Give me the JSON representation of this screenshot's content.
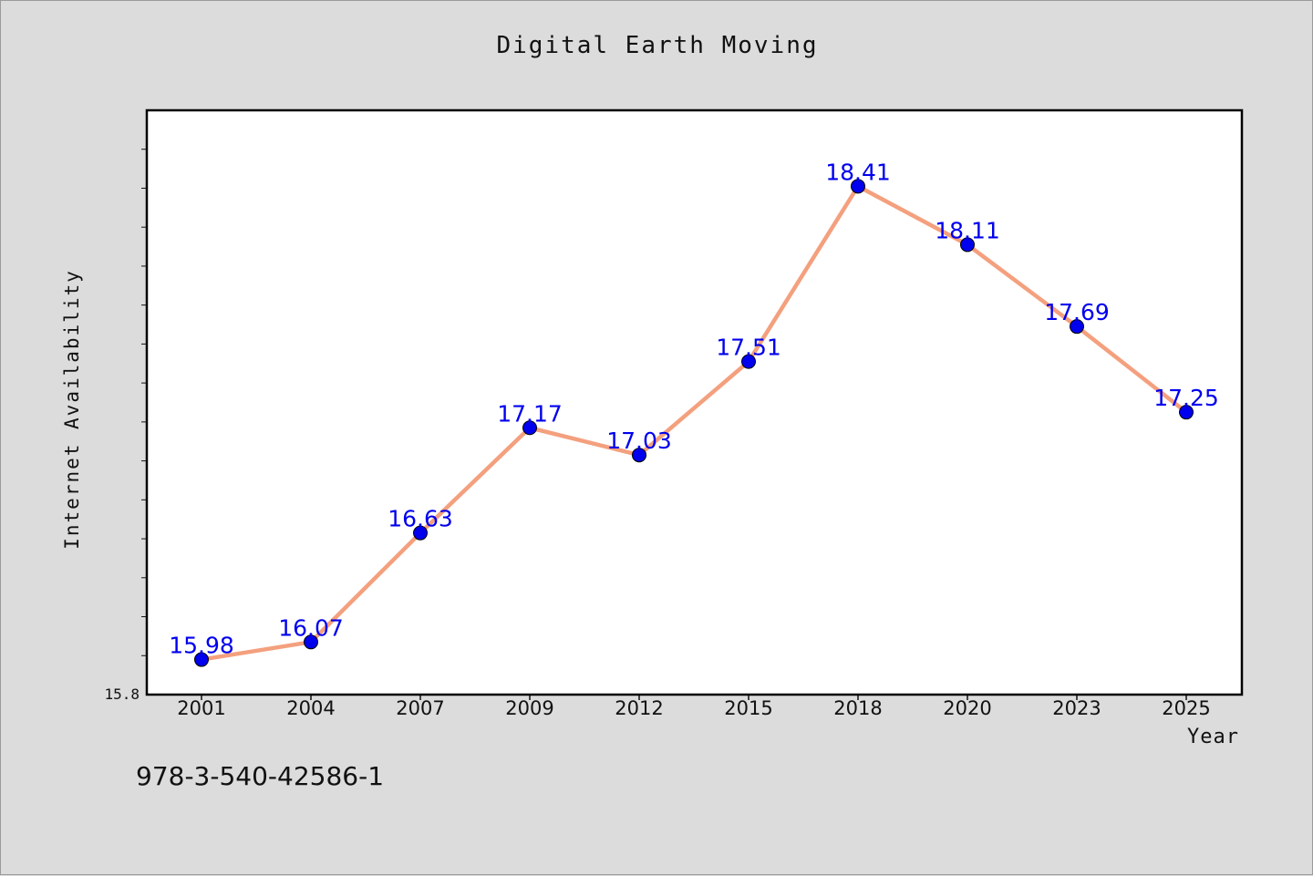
{
  "chart_data": {
    "type": "line",
    "title": "Digital Earth Moving",
    "xlabel": "Year",
    "ylabel": "Internet Availability",
    "categories": [
      "2001",
      "2004",
      "2007",
      "2009",
      "2012",
      "2015",
      "2018",
      "2020",
      "2023",
      "2025"
    ],
    "series": [
      {
        "values": [
          15.98,
          16.07,
          16.63,
          17.17,
          17.03,
          17.51,
          18.41,
          18.11,
          17.69,
          17.25
        ]
      }
    ],
    "ylim": [
      15.8,
      18.8
    ],
    "yticks_labeled": [
      "15.8"
    ],
    "grid": false,
    "line_color": "#f4a07e",
    "marker_color": "#0000ee",
    "label_color": "#0000ee"
  },
  "footer": {
    "isbn": "978-3-540-42586-1"
  }
}
